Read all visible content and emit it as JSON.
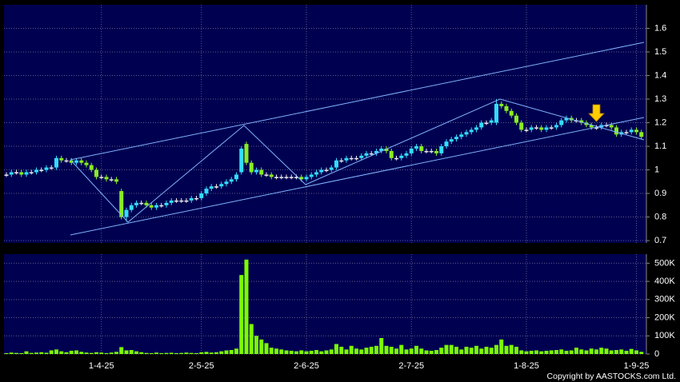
{
  "chart_data": {
    "type": "candlestick",
    "categories": [
      null,
      null,
      null,
      null,
      null,
      null,
      null,
      null,
      null,
      null,
      null,
      null,
      null,
      null,
      null,
      null,
      null,
      null,
      null,
      "1-4-25",
      null,
      null,
      null,
      null,
      null,
      null,
      null,
      null,
      null,
      null,
      null,
      null,
      null,
      null,
      null,
      null,
      null,
      null,
      null,
      "2-5-25",
      null,
      null,
      null,
      null,
      null,
      null,
      null,
      null,
      null,
      null,
      null,
      null,
      null,
      null,
      null,
      null,
      null,
      null,
      null,
      null,
      "2-6-25",
      null,
      null,
      null,
      null,
      null,
      null,
      null,
      null,
      null,
      null,
      null,
      null,
      null,
      null,
      null,
      null,
      null,
      null,
      null,
      null,
      "2-7-25",
      null,
      null,
      null,
      null,
      null,
      null,
      null,
      null,
      null,
      null,
      null,
      null,
      null,
      null,
      null,
      null,
      null,
      null,
      null,
      null,
      null,
      null,
      "1-8-25",
      null,
      null,
      null,
      null,
      null,
      null,
      null,
      null,
      null,
      null,
      null,
      null,
      null,
      null,
      null,
      null,
      null,
      null,
      null,
      null,
      null,
      "1-9-25",
      null
    ],
    "open": [
      0.98,
      0.98,
      0.99,
      0.99,
      0.98,
      0.99,
      0.99,
      1.0,
      1.0,
      1.01,
      1.01,
      1.05,
      1.04,
      1.04,
      1.03,
      1.04,
      1.03,
      1.02,
      1.0,
      0.97,
      0.97,
      0.96,
      0.96,
      0.91,
      0.8,
      0.83,
      0.85,
      0.86,
      0.86,
      0.85,
      0.84,
      0.85,
      0.85,
      0.86,
      0.87,
      0.87,
      0.87,
      0.87,
      0.88,
      0.88,
      0.9,
      0.92,
      0.93,
      0.93,
      0.94,
      0.95,
      0.96,
      0.99,
      1.11,
      1.03,
      0.99,
      1.0,
      0.98,
      0.98,
      0.97,
      0.97,
      0.97,
      0.97,
      0.97,
      0.97,
      0.96,
      0.97,
      0.98,
      0.99,
      1.0,
      1.0,
      1.01,
      1.04,
      1.04,
      1.05,
      1.05,
      1.05,
      1.06,
      1.07,
      1.07,
      1.08,
      1.09,
      1.08,
      1.05,
      1.05,
      1.06,
      1.07,
      1.09,
      1.1,
      1.08,
      1.08,
      1.08,
      1.07,
      1.1,
      1.12,
      1.13,
      1.14,
      1.15,
      1.16,
      1.17,
      1.18,
      1.2,
      1.2,
      1.2,
      1.28,
      1.27,
      1.25,
      1.23,
      1.2,
      1.17,
      1.17,
      1.18,
      1.18,
      1.17,
      1.18,
      1.18,
      1.19,
      1.21,
      1.22,
      1.21,
      1.21,
      1.2,
      1.19,
      1.18,
      1.18,
      1.19,
      1.19,
      1.18,
      1.15,
      1.16,
      1.16,
      1.17,
      1.16
    ],
    "high": [
      0.99,
      1.0,
      1.0,
      1.0,
      1.0,
      1.0,
      1.01,
      1.01,
      1.02,
      1.02,
      1.06,
      1.06,
      1.05,
      1.05,
      1.05,
      1.05,
      1.04,
      1.03,
      1.01,
      0.98,
      0.98,
      0.97,
      0.97,
      0.92,
      0.84,
      0.86,
      0.87,
      0.87,
      0.87,
      0.86,
      0.86,
      0.86,
      0.87,
      0.88,
      0.88,
      0.88,
      0.88,
      0.89,
      0.89,
      0.91,
      0.93,
      0.94,
      0.94,
      0.95,
      0.96,
      0.97,
      0.99,
      1.1,
      1.12,
      1.04,
      1.01,
      1.01,
      0.99,
      0.99,
      0.98,
      0.98,
      0.98,
      0.98,
      0.98,
      0.98,
      0.98,
      0.99,
      1.0,
      1.01,
      1.01,
      1.02,
      1.05,
      1.05,
      1.06,
      1.06,
      1.06,
      1.07,
      1.08,
      1.08,
      1.09,
      1.1,
      1.1,
      1.09,
      1.06,
      1.07,
      1.08,
      1.1,
      1.11,
      1.11,
      1.09,
      1.09,
      1.09,
      1.11,
      1.13,
      1.14,
      1.15,
      1.16,
      1.17,
      1.18,
      1.19,
      1.21,
      1.21,
      1.22,
      1.3,
      1.29,
      1.28,
      1.26,
      1.24,
      1.21,
      1.18,
      1.19,
      1.19,
      1.19,
      1.19,
      1.19,
      1.2,
      1.22,
      1.23,
      1.23,
      1.22,
      1.22,
      1.21,
      1.2,
      1.19,
      1.2,
      1.2,
      1.2,
      1.19,
      1.17,
      1.17,
      1.18,
      1.18,
      1.17
    ],
    "low": [
      0.97,
      0.97,
      0.98,
      0.97,
      0.97,
      0.98,
      0.98,
      0.99,
      0.99,
      1.0,
      1.0,
      1.03,
      1.03,
      1.02,
      1.02,
      1.02,
      1.01,
      0.99,
      0.96,
      0.96,
      0.95,
      0.95,
      0.94,
      0.79,
      0.78,
      0.82,
      0.84,
      0.85,
      0.84,
      0.83,
      0.83,
      0.84,
      0.84,
      0.85,
      0.86,
      0.86,
      0.86,
      0.86,
      0.87,
      0.87,
      0.89,
      0.91,
      0.92,
      0.92,
      0.93,
      0.94,
      0.95,
      0.98,
      1.02,
      0.98,
      0.98,
      0.97,
      0.97,
      0.96,
      0.96,
      0.96,
      0.96,
      0.96,
      0.96,
      0.95,
      0.95,
      0.96,
      0.97,
      0.98,
      0.99,
      0.99,
      1.0,
      1.03,
      1.03,
      1.04,
      1.04,
      1.04,
      1.05,
      1.06,
      1.06,
      1.07,
      1.07,
      1.04,
      1.04,
      1.04,
      1.05,
      1.06,
      1.08,
      1.07,
      1.07,
      1.07,
      1.06,
      1.06,
      1.09,
      1.11,
      1.12,
      1.13,
      1.14,
      1.15,
      1.16,
      1.17,
      1.19,
      1.19,
      1.19,
      1.26,
      1.24,
      1.22,
      1.19,
      1.16,
      1.16,
      1.16,
      1.17,
      1.16,
      1.16,
      1.17,
      1.17,
      1.18,
      1.2,
      1.2,
      1.2,
      1.19,
      1.18,
      1.17,
      1.17,
      1.17,
      1.18,
      1.17,
      1.14,
      1.14,
      1.15,
      1.15,
      1.15,
      1.13
    ],
    "close": [
      0.98,
      0.99,
      0.99,
      0.98,
      0.99,
      0.99,
      1.0,
      1.0,
      1.01,
      1.01,
      1.05,
      1.04,
      1.04,
      1.03,
      1.04,
      1.03,
      1.02,
      1.0,
      0.97,
      0.97,
      0.96,
      0.96,
      0.95,
      0.8,
      0.83,
      0.85,
      0.86,
      0.86,
      0.85,
      0.84,
      0.85,
      0.85,
      0.86,
      0.87,
      0.87,
      0.87,
      0.87,
      0.88,
      0.88,
      0.9,
      0.92,
      0.93,
      0.93,
      0.94,
      0.95,
      0.96,
      0.98,
      1.09,
      1.03,
      0.99,
      1.0,
      0.98,
      0.98,
      0.97,
      0.97,
      0.97,
      0.97,
      0.97,
      0.97,
      0.96,
      0.97,
      0.98,
      0.99,
      1.0,
      1.0,
      1.01,
      1.04,
      1.04,
      1.05,
      1.05,
      1.05,
      1.06,
      1.07,
      1.07,
      1.08,
      1.09,
      1.08,
      1.05,
      1.05,
      1.06,
      1.07,
      1.09,
      1.1,
      1.08,
      1.08,
      1.08,
      1.07,
      1.1,
      1.12,
      1.13,
      1.14,
      1.15,
      1.16,
      1.17,
      1.18,
      1.2,
      1.2,
      1.21,
      1.28,
      1.27,
      1.25,
      1.23,
      1.2,
      1.17,
      1.17,
      1.18,
      1.18,
      1.17,
      1.18,
      1.18,
      1.19,
      1.21,
      1.22,
      1.21,
      1.21,
      1.2,
      1.19,
      1.18,
      1.18,
      1.19,
      1.19,
      1.18,
      1.15,
      1.16,
      1.16,
      1.17,
      1.16,
      1.14
    ],
    "up_color": "#33ddff",
    "down_color": "#88ee22",
    "flat_color": "#e8e8e8",
    "ylim": [
      0.69,
      1.7
    ],
    "yticks": [
      0.7,
      0.8,
      0.9,
      1,
      1.1,
      1.2,
      1.3,
      1.4,
      1.5,
      1.6
    ],
    "grid": true,
    "volume": {
      "color": "#7cfc00",
      "values": [
        5000,
        8000,
        6000,
        5000,
        15000,
        6000,
        8000,
        10000,
        7000,
        20000,
        25000,
        15000,
        10000,
        18000,
        20000,
        12000,
        8000,
        6000,
        10000,
        8000,
        5000,
        8000,
        12000,
        38000,
        20000,
        22000,
        15000,
        10000,
        6000,
        5000,
        8000,
        5000,
        6000,
        7000,
        5000,
        6000,
        8000,
        6000,
        5000,
        10000,
        12000,
        8000,
        10000,
        15000,
        20000,
        22000,
        30000,
        435000,
        520000,
        165000,
        100000,
        80000,
        60000,
        35000,
        30000,
        25000,
        20000,
        18000,
        15000,
        20000,
        15000,
        18000,
        22000,
        15000,
        20000,
        25000,
        55000,
        40000,
        25000,
        45000,
        30000,
        25000,
        35000,
        40000,
        45000,
        88000,
        45000,
        40000,
        30000,
        50000,
        25000,
        30000,
        45000,
        30000,
        20000,
        18000,
        22000,
        35000,
        50000,
        50000,
        40000,
        25000,
        40000,
        35000,
        45000,
        30000,
        40000,
        35000,
        50000,
        80000,
        45000,
        50000,
        40000,
        20000,
        15000,
        18000,
        20000,
        15000,
        18000,
        20000,
        22000,
        25000,
        18000,
        20000,
        35000,
        25000,
        20000,
        30000,
        25000,
        35000,
        30000,
        20000,
        22000,
        25000,
        18000,
        28000,
        20000,
        12000
      ],
      "ylim": [
        0,
        550000
      ],
      "yticks": [
        0,
        {
          "value": 100000,
          "label": "100K"
        },
        {
          "value": 200000,
          "label": "200K"
        },
        {
          "value": 300000,
          "label": "300K"
        },
        {
          "value": 400000,
          "label": "400K"
        },
        {
          "value": 500000,
          "label": "500K"
        }
      ]
    },
    "copyright": "Copyright by AASTOCKS.com Ltd."
  }
}
